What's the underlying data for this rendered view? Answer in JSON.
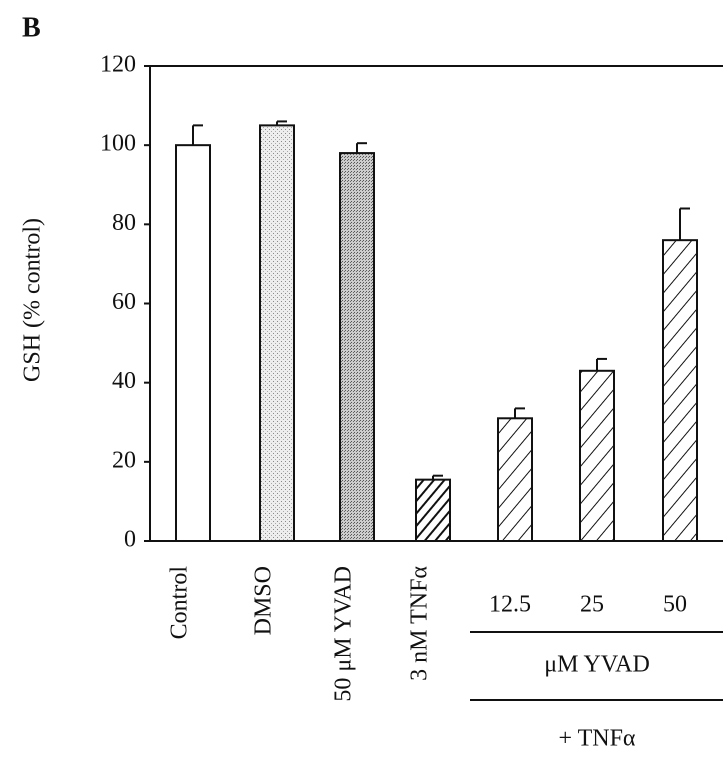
{
  "chart_data": {
    "type": "bar",
    "panel": "B",
    "ylabel": "GSH (% control)",
    "categories": [
      "Control",
      "DMSO",
      "50 μM YVAD",
      "3 nM TNFα",
      "12.5",
      "25",
      "50"
    ],
    "values": [
      100,
      105,
      98,
      15.5,
      31,
      43,
      76
    ],
    "errors": [
      5,
      1,
      2.5,
      1,
      2.5,
      3,
      8
    ],
    "group_labels": [
      "μM YVAD",
      "+ TNFα"
    ],
    "ylim": [
      0,
      120
    ],
    "yticks": [
      0,
      20,
      40,
      60,
      80,
      100,
      120
    ]
  }
}
